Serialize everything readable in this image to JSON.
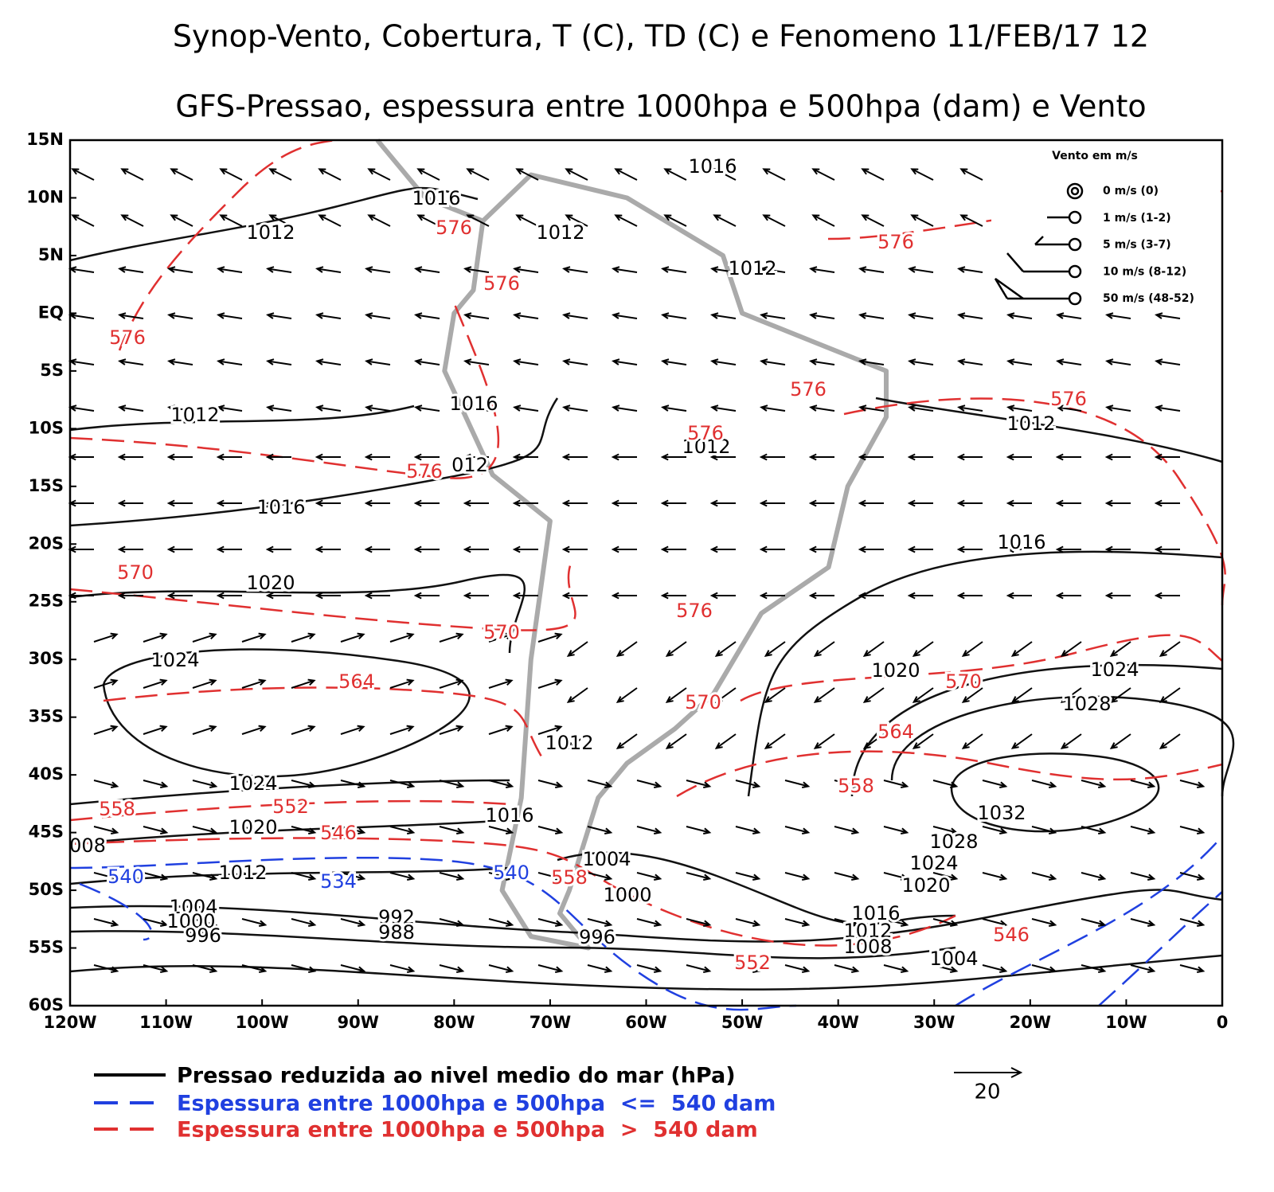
{
  "title": "Synop-Vento, Cobertura, T (C), TD (C) e Fenomeno 11/FEB/17 12",
  "subtitle": "GFS-Pressao, espessura entre 1000hpa e 500hpa (dam) e Vento",
  "map": {
    "x_ticks": [
      "120W",
      "110W",
      "100W",
      "90W",
      "80W",
      "70W",
      "60W",
      "50W",
      "40W",
      "30W",
      "20W",
      "10W",
      "0"
    ],
    "y_ticks": [
      "15N",
      "10N",
      "5N",
      "EQ",
      "5S",
      "10S",
      "15S",
      "20S",
      "25S",
      "30S",
      "35S",
      "40S",
      "45S",
      "50S",
      "55S",
      "60S"
    ]
  },
  "wind_key": {
    "title": "Vento em m/s",
    "items": [
      "0 m/s (0)",
      "1 m/s (1-2)",
      "5 m/s (3-7)",
      "10 m/s (8-12)",
      "50 m/s (48-52)"
    ]
  },
  "pressure_labels": [
    "1016",
    "1016",
    "1012",
    "1012",
    "1012",
    "1016",
    "1012",
    "1012",
    "1012",
    "012",
    "1016",
    "1016",
    "1020",
    "1024",
    "1020",
    "1024",
    "1028",
    "1012",
    "1024",
    "1016",
    "1032",
    "1020",
    "1028",
    "008",
    "1004",
    "1024",
    "1012",
    "1020",
    "1000",
    "1004",
    "1016",
    "992",
    "1012",
    "1000",
    "996",
    "988",
    "996",
    "1008",
    "1004"
  ],
  "thickness_labels": [
    "576",
    "576",
    "576",
    "576",
    "576",
    "576",
    "576",
    "576",
    "570",
    "576",
    "570",
    "564",
    "570",
    "570",
    "564",
    "558",
    "558",
    "552",
    "546",
    "558",
    "546",
    "552"
  ],
  "cold_thickness_labels": [
    "540",
    "534",
    "540"
  ],
  "legend": [
    "Pressao reduzida ao nivel medio do mar (hPa)",
    "Espessura entre 1000hpa e 500hpa  <=  540 dam",
    "Espessura entre 1000hpa e 500hpa  >  540 dam"
  ],
  "reference_vector": "20"
}
